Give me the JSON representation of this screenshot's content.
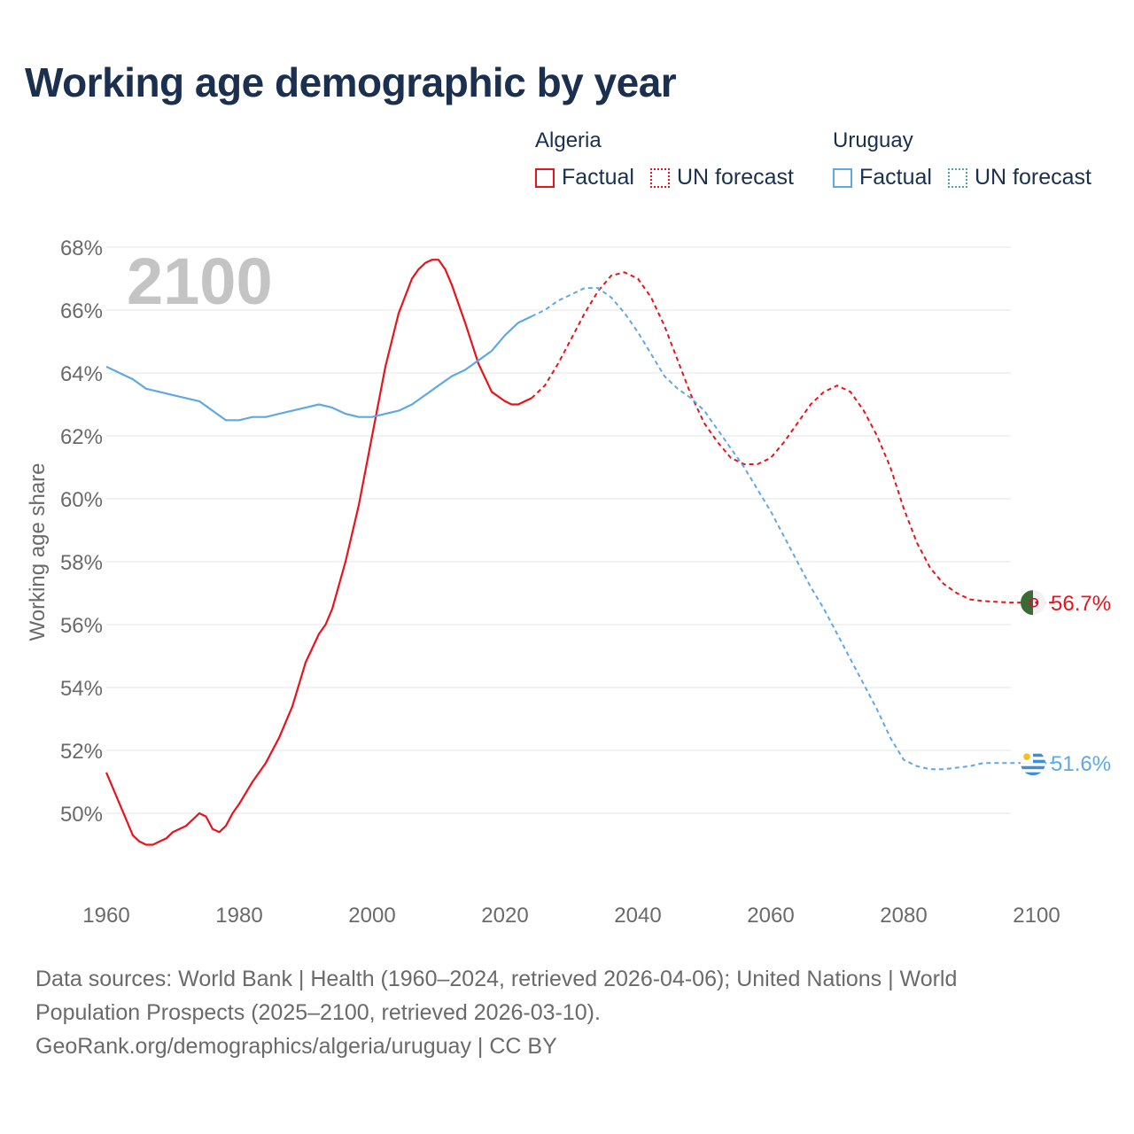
{
  "title": "Working age demographic by year",
  "legend": {
    "groups": [
      {
        "country": "Algeria",
        "factual_label": "Factual",
        "forecast_label": "UN forecast",
        "color": "#e8131b"
      },
      {
        "country": "Uruguay",
        "factual_label": "Factual",
        "forecast_label": "UN forecast",
        "color": "#5fa8e8"
      }
    ]
  },
  "colors": {
    "algeria": "#e8131b",
    "uruguay": "#5fa8e8",
    "uruguay_forecast_swatch": "#4ba3b3",
    "grid": "#e6e6e6",
    "axis_text": "#6a6a6a",
    "year_watermark": "#c4c4c4",
    "title": "#1b2f4f"
  },
  "footer": {
    "line1": "Data sources: World Bank | Health (1960–2024, retrieved 2026-04-06); United Nations | World",
    "line2": "Population Prospects (2025–2100, retrieved 2026-03-10).",
    "line3": "GeoRank.org/demographics/algeria/uruguay | CC BY"
  },
  "chart_data": {
    "type": "line",
    "title": "Working age demographic by year",
    "ylabel": "Working age share",
    "xlabel": "",
    "year_watermark": "2100",
    "xlim": [
      1960,
      2100
    ],
    "ylim": [
      48,
      68
    ],
    "x_ticks": [
      1960,
      1980,
      2000,
      2020,
      2040,
      2060,
      2080,
      2100
    ],
    "y_ticks": [
      50,
      52,
      54,
      56,
      58,
      60,
      62,
      64,
      66,
      68
    ],
    "y_tick_labels": [
      "50%",
      "52%",
      "54%",
      "56%",
      "58%",
      "60%",
      "62%",
      "64%",
      "66%",
      "68%"
    ],
    "grid": true,
    "series": [
      {
        "name": "Algeria",
        "color": "#e8131b",
        "end_label": "56.7%",
        "flag": "algeria-flag",
        "factual": {
          "x": [
            1960,
            1962,
            1964,
            1965,
            1966,
            1967,
            1968,
            1969,
            1970,
            1972,
            1974,
            1975,
            1976,
            1977,
            1978,
            1979,
            1980,
            1982,
            1984,
            1986,
            1988,
            1990,
            1992,
            1993,
            1994,
            1996,
            1998,
            2000,
            2002,
            2004,
            2006,
            2007,
            2008,
            2009,
            2010,
            2011,
            2012,
            2014,
            2016,
            2018,
            2020,
            2021,
            2022,
            2023,
            2024
          ],
          "y": [
            51.3,
            50.3,
            49.3,
            49.1,
            49.0,
            49.0,
            49.1,
            49.2,
            49.4,
            49.6,
            50.0,
            49.9,
            49.5,
            49.4,
            49.6,
            50.0,
            50.3,
            51.0,
            51.6,
            52.4,
            53.4,
            54.8,
            55.7,
            56.0,
            56.5,
            58.0,
            59.8,
            62.0,
            64.2,
            65.9,
            67.0,
            67.3,
            67.5,
            67.6,
            67.6,
            67.3,
            66.8,
            65.6,
            64.3,
            63.4,
            63.1,
            63.0,
            63.0,
            63.1,
            63.2
          ]
        },
        "forecast": {
          "x": [
            2024,
            2026,
            2028,
            2030,
            2032,
            2034,
            2036,
            2038,
            2040,
            2042,
            2044,
            2046,
            2048,
            2050,
            2052,
            2054,
            2056,
            2058,
            2060,
            2062,
            2064,
            2066,
            2068,
            2070,
            2072,
            2074,
            2076,
            2078,
            2080,
            2082,
            2084,
            2086,
            2088,
            2090,
            2092,
            2094,
            2096,
            2098,
            2100,
            2103
          ],
          "y": [
            63.2,
            63.6,
            64.3,
            65.1,
            65.9,
            66.6,
            67.1,
            67.2,
            67.0,
            66.4,
            65.5,
            64.4,
            63.3,
            62.4,
            61.8,
            61.3,
            61.1,
            61.1,
            61.3,
            61.8,
            62.4,
            63.0,
            63.4,
            63.6,
            63.4,
            62.8,
            62.0,
            61.0,
            59.7,
            58.6,
            57.8,
            57.3,
            57.0,
            56.8,
            56.75,
            56.72,
            56.7,
            56.7,
            56.7,
            56.7
          ]
        }
      },
      {
        "name": "Uruguay",
        "color": "#5fa8e8",
        "end_label": "51.6%",
        "flag": "uruguay-flag",
        "factual": {
          "x": [
            1960,
            1962,
            1964,
            1966,
            1968,
            1970,
            1972,
            1974,
            1976,
            1978,
            1980,
            1982,
            1984,
            1986,
            1988,
            1990,
            1992,
            1994,
            1996,
            1998,
            2000,
            2002,
            2004,
            2006,
            2008,
            2010,
            2012,
            2014,
            2016,
            2018,
            2020,
            2022,
            2024
          ],
          "y": [
            64.2,
            64.0,
            63.8,
            63.5,
            63.4,
            63.3,
            63.2,
            63.1,
            62.8,
            62.5,
            62.5,
            62.6,
            62.6,
            62.7,
            62.8,
            62.9,
            63.0,
            62.9,
            62.7,
            62.6,
            62.6,
            62.7,
            62.8,
            63.0,
            63.3,
            63.6,
            63.9,
            64.1,
            64.4,
            64.7,
            65.2,
            65.6,
            65.8
          ]
        },
        "forecast": {
          "x": [
            2024,
            2026,
            2028,
            2030,
            2032,
            2034,
            2036,
            2038,
            2040,
            2042,
            2044,
            2046,
            2048,
            2050,
            2052,
            2054,
            2056,
            2058,
            2060,
            2062,
            2064,
            2066,
            2068,
            2070,
            2072,
            2074,
            2076,
            2078,
            2080,
            2082,
            2084,
            2086,
            2088,
            2090,
            2092,
            2094,
            2096,
            2098,
            2100,
            2103
          ],
          "y": [
            65.8,
            66.0,
            66.3,
            66.5,
            66.7,
            66.7,
            66.4,
            65.9,
            65.3,
            64.6,
            63.9,
            63.5,
            63.2,
            62.8,
            62.2,
            61.6,
            61.0,
            60.3,
            59.6,
            58.8,
            58.0,
            57.2,
            56.5,
            55.7,
            54.9,
            54.1,
            53.3,
            52.4,
            51.7,
            51.5,
            51.4,
            51.4,
            51.45,
            51.5,
            51.6,
            51.6,
            51.6,
            51.6,
            51.6,
            51.6
          ]
        }
      }
    ]
  }
}
